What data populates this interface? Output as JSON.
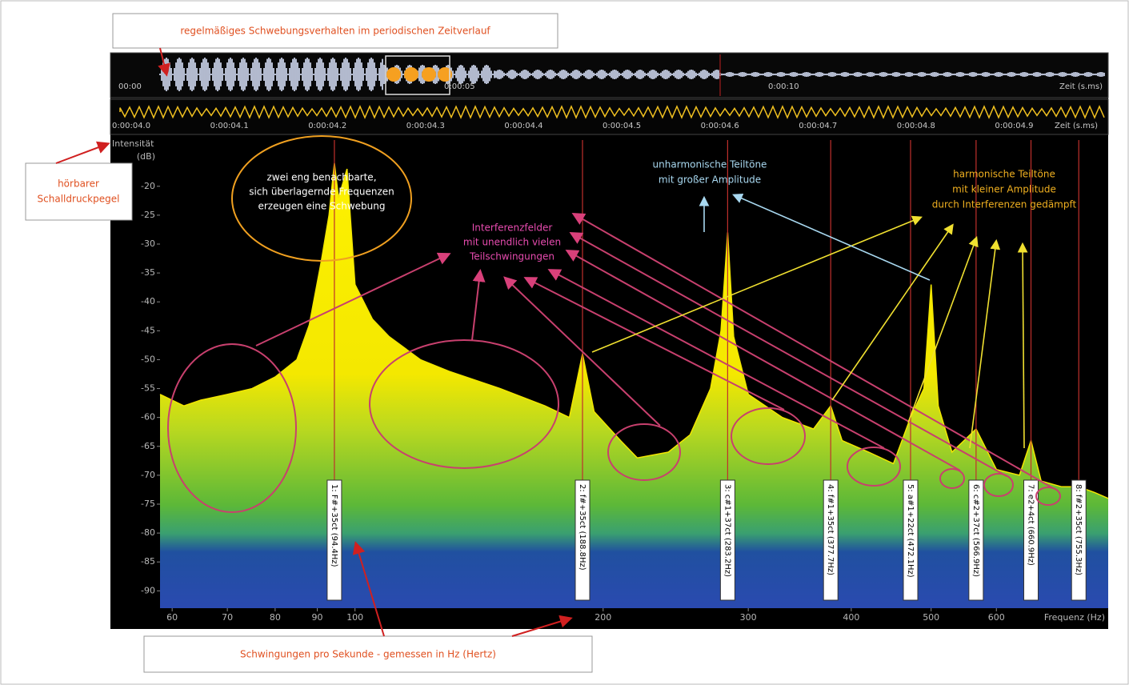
{
  "annotations": {
    "beat_pattern": "regelmäßiges Schwebungsverhalten im periodischen Zeitverlauf",
    "sound_level": [
      "hörbarer",
      "Schalldruckpegel"
    ],
    "frequency_unit": "Schwingungen pro Sekunde - gemessen in Hz (Hertz)",
    "beat": [
      "zwei eng benachbarte,",
      "sich überlagernde Frequenzen",
      "erzeugen eine Schwebung"
    ],
    "interference": [
      "Interferenzfelder",
      "mit unendlich vielen",
      "Teilschwingungen"
    ],
    "inharmonic": [
      "unharmonische Teiltöne",
      "mit großer Amplitude"
    ],
    "harmonic": [
      "harmonische Teiltöne",
      "mit kleiner Amplitude",
      "durch Interferenzen gedämpft"
    ]
  },
  "timeline": {
    "ticks": [
      "00:00",
      "0:00:05",
      "0:00:10"
    ],
    "label": "Zeit (s.ms)"
  },
  "detail_timeline": {
    "ticks": [
      "0:00:04.0",
      "0:00:04.1",
      "0:00:04.2",
      "0:00:04.3",
      "0:00:04.4",
      "0:00:04.5",
      "0:00:04.6",
      "0:00:04.7",
      "0:00:04.8",
      "0:00:04.9"
    ],
    "label": "Zeit (s.ms)"
  },
  "chart_data": {
    "type": "line",
    "log_x": true,
    "color": "#f2e600",
    "marker_color": "#c0302c",
    "x_label": "Frequenz (Hz)",
    "y_label": "Intensität",
    "y_unit": "(dB)",
    "x": [
      58,
      62,
      65,
      70,
      75,
      80,
      85,
      88,
      91,
      93,
      94.4,
      95.5,
      97.8,
      100,
      105,
      110,
      120,
      130,
      150,
      170,
      182,
      188.8,
      195,
      210,
      220,
      240,
      255,
      270,
      278,
      283.2,
      288,
      300,
      330,
      360,
      377.7,
      390,
      420,
      450,
      472.1,
      490,
      500,
      510,
      530,
      566.9,
      600,
      640,
      660.9,
      680,
      720,
      755.3,
      790,
      820
    ],
    "values": [
      -56,
      -58,
      -57,
      -56,
      -55,
      -53,
      -50,
      -44,
      -33,
      -25,
      -16,
      -22,
      -17,
      -37,
      -43,
      -46,
      -50,
      -52,
      -55,
      -58,
      -60,
      -49,
      -59,
      -64,
      -67,
      -66,
      -63,
      -55,
      -45,
      -28,
      -46,
      -56,
      -60,
      -62,
      -58,
      -64,
      -66,
      -68,
      -60,
      -55,
      -37,
      -58,
      -66,
      -62,
      -69,
      -70,
      -64,
      -71,
      -72,
      -72,
      -73,
      -74
    ],
    "xlim": [
      58,
      820
    ],
    "ylim": [
      -93,
      -12
    ],
    "xticks": [
      60,
      70,
      80,
      90,
      100,
      200,
      300,
      400,
      500,
      600
    ],
    "yticks": [
      -20,
      -25,
      -30,
      -35,
      -40,
      -45,
      -50,
      -55,
      -60,
      -65,
      -70,
      -75,
      -80,
      -85,
      -90
    ],
    "note_markers": [
      {
        "value": 94.4,
        "label": "1: F#+35ct (94.4Hz)"
      },
      {
        "value": 188.8,
        "label": "2: f#+35ct (188.8Hz)"
      },
      {
        "value": 283.2,
        "label": "3: c#1+37ct (283.2Hz)"
      },
      {
        "value": 377.7,
        "label": "4: f#1+35ct (377.7Hz)"
      },
      {
        "value": 472.1,
        "label": "5: a#1+22ct (472.1Hz)"
      },
      {
        "value": 566.9,
        "label": "6: c#2+37ct (566.9Hz)"
      },
      {
        "value": 660.9,
        "label": "7: e2+4ct (660.9Hz)"
      },
      {
        "value": 755.3,
        "label": "8: f#2+35ct (755.3Hz)"
      }
    ]
  }
}
